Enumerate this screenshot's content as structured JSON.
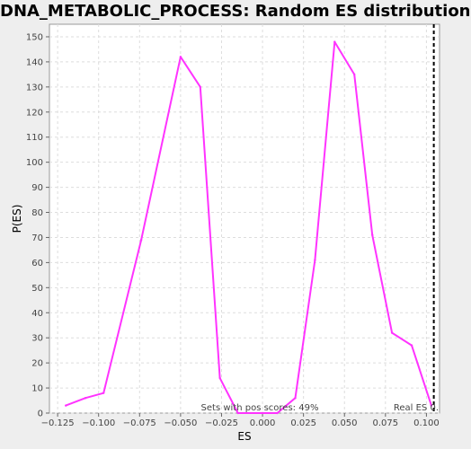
{
  "chart_data": {
    "type": "line",
    "title": "DNA_METABOLIC_PROCESS: Random ES distribution",
    "xlabel": "ES",
    "ylabel": "P(ES)",
    "xlim": [
      -0.13,
      0.108
    ],
    "ylim": [
      0,
      155
    ],
    "x_ticks": [
      -0.125,
      -0.1,
      -0.075,
      -0.05,
      -0.025,
      0.0,
      0.025,
      0.05,
      0.075,
      0.1
    ],
    "x_tick_labels": [
      "-0.125",
      "-0.100",
      "-0.075",
      "-0.050",
      "-0.025",
      "0.000",
      "0.025",
      "0.050",
      "0.075",
      "0.100"
    ],
    "y_ticks": [
      0,
      10,
      20,
      30,
      40,
      50,
      60,
      70,
      80,
      90,
      100,
      110,
      120,
      130,
      140,
      150
    ],
    "grid": true,
    "series": [
      {
        "color": "#ff33ff",
        "x": [
          -0.12,
          -0.108,
          -0.097,
          -0.074,
          -0.05,
          -0.038,
          -0.026,
          -0.015,
          0.0,
          0.009,
          0.02,
          0.032,
          0.044,
          0.056,
          0.067,
          0.079,
          0.091,
          0.103
        ],
        "y": [
          3,
          6,
          8,
          69,
          142,
          130,
          14,
          0,
          0,
          0,
          6,
          61,
          148,
          135,
          71,
          32,
          27,
          3
        ]
      }
    ],
    "annotations": {
      "real_es_x": 0.1045,
      "real_es_label": "Real ES 0.",
      "note": "Sets with pos scores: 49%"
    }
  }
}
